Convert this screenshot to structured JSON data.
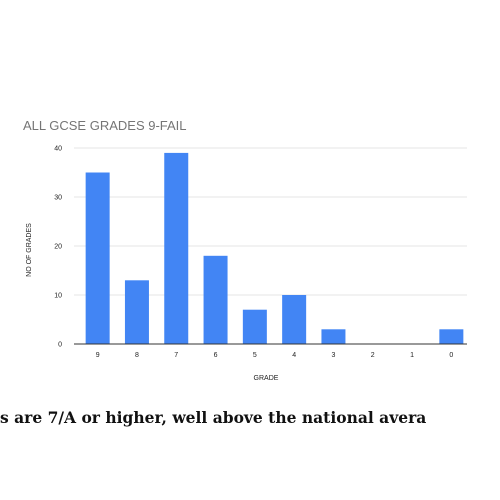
{
  "chart_data": {
    "type": "bar",
    "title": "ALL GCSE GRADES 9-FAIL",
    "xlabel": "GRADE",
    "ylabel": "NO OF GRADES",
    "categories": [
      "9",
      "8",
      "7",
      "6",
      "5",
      "4",
      "3",
      "2",
      "1",
      "0"
    ],
    "values": [
      35,
      13,
      39,
      18,
      7,
      10,
      3,
      0,
      0,
      3
    ],
    "ylim": [
      0,
      40
    ],
    "yticks": [
      "0",
      "10",
      "20",
      "30",
      "40"
    ],
    "grid": true,
    "bar_color": "#4285f4"
  },
  "caption": "s are 7/A or higher, well above the national avera"
}
